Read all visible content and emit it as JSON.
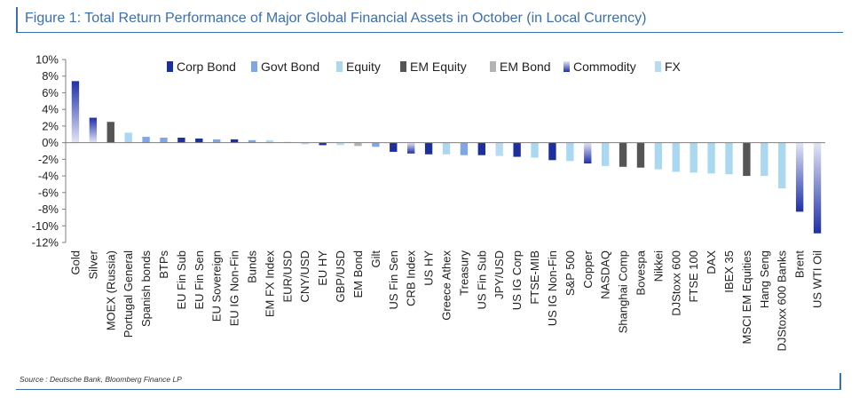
{
  "title": "Figure 1: Total Return Performance of Major Global Financial Assets in October (in Local Currency)",
  "source": "Source : Deutsche Bank, Bloomberg Finance LP",
  "colors": {
    "Corp Bond": "#1c2f9a",
    "Govt Bond": "#7ea6e8",
    "Equity": "#a9d8f0",
    "EM Equity": "#555555",
    "EM Bond": "#b3b3b3",
    "Commodity": "#1e2fa8",
    "FX": "#b7dcf1",
    "commodity_gradient_light": "#e4e6f6",
    "axis": "#7f7f7f"
  },
  "chart_data": {
    "type": "bar",
    "ylim": [
      -12,
      10
    ],
    "yticks": [
      "10%",
      "8%",
      "6%",
      "4%",
      "2%",
      "0%",
      "-2%",
      "-4%",
      "-6%",
      "-8%",
      "-10%",
      "-12%"
    ],
    "ytick_values": [
      10,
      8,
      6,
      4,
      2,
      0,
      -2,
      -4,
      -6,
      -8,
      -10,
      -12
    ],
    "legend_position": "top",
    "legend": [
      "Corp Bond",
      "Govt Bond",
      "Equity",
      "EM Equity",
      "EM Bond",
      "Commodity",
      "FX"
    ],
    "categories": [
      "Gold",
      "Silver",
      "MOEX (Russia)",
      "Portugal General",
      "Spanish bonds",
      "BTPs",
      "EU Fin Sub",
      "EU Fin Sen",
      "EU Sovereign",
      "EU IG Non-Fin",
      "Bunds",
      "EM FX Index",
      "EUR/USD",
      "CNY/USD",
      "EU HY",
      "GBP/USD",
      "EM Bond",
      "Gilt",
      "US Fin Sen",
      "CRB Index",
      "US HY",
      "Greece Athex",
      "Treasury",
      "US Fin Sub",
      "JPY/USD",
      "US IG Corp",
      "FTSE-MIB",
      "US IG Non-Fin",
      "S&P 500",
      "Copper",
      "NASDAQ",
      "Shanghai Comp",
      "Bovespa",
      "Nikkei",
      "DJStoxx 600",
      "FTSE 100",
      "DAX",
      "IBEX 35",
      "MSCI EM Equities",
      "Hang Seng",
      "DJStoxx 600 Banks",
      "Brent",
      "US WTI Oil"
    ],
    "groups": [
      "Commodity",
      "Commodity",
      "EM Equity",
      "Equity",
      "Govt Bond",
      "Govt Bond",
      "Corp Bond",
      "Corp Bond",
      "Govt Bond",
      "Corp Bond",
      "Govt Bond",
      "FX",
      "FX",
      "FX",
      "Corp Bond",
      "FX",
      "EM Bond",
      "Govt Bond",
      "Corp Bond",
      "Commodity",
      "Corp Bond",
      "Equity",
      "Govt Bond",
      "Corp Bond",
      "FX",
      "Corp Bond",
      "Equity",
      "Corp Bond",
      "Equity",
      "Commodity",
      "Equity",
      "EM Equity",
      "EM Equity",
      "Equity",
      "Equity",
      "Equity",
      "Equity",
      "Equity",
      "EM Equity",
      "Equity",
      "Equity",
      "Commodity",
      "Commodity"
    ],
    "values": [
      7.4,
      3.0,
      2.5,
      1.2,
      0.7,
      0.6,
      0.6,
      0.5,
      0.4,
      0.4,
      0.3,
      0.3,
      0.1,
      -0.2,
      -0.3,
      -0.3,
      -0.4,
      -0.5,
      -1.1,
      -1.3,
      -1.4,
      -1.4,
      -1.5,
      -1.5,
      -1.6,
      -1.7,
      -1.8,
      -2.1,
      -2.2,
      -2.5,
      -2.8,
      -2.9,
      -3.0,
      -3.2,
      -3.5,
      -3.6,
      -3.7,
      -3.8,
      -4.0,
      -4.0,
      -5.5,
      -8.3,
      -10.9
    ]
  }
}
